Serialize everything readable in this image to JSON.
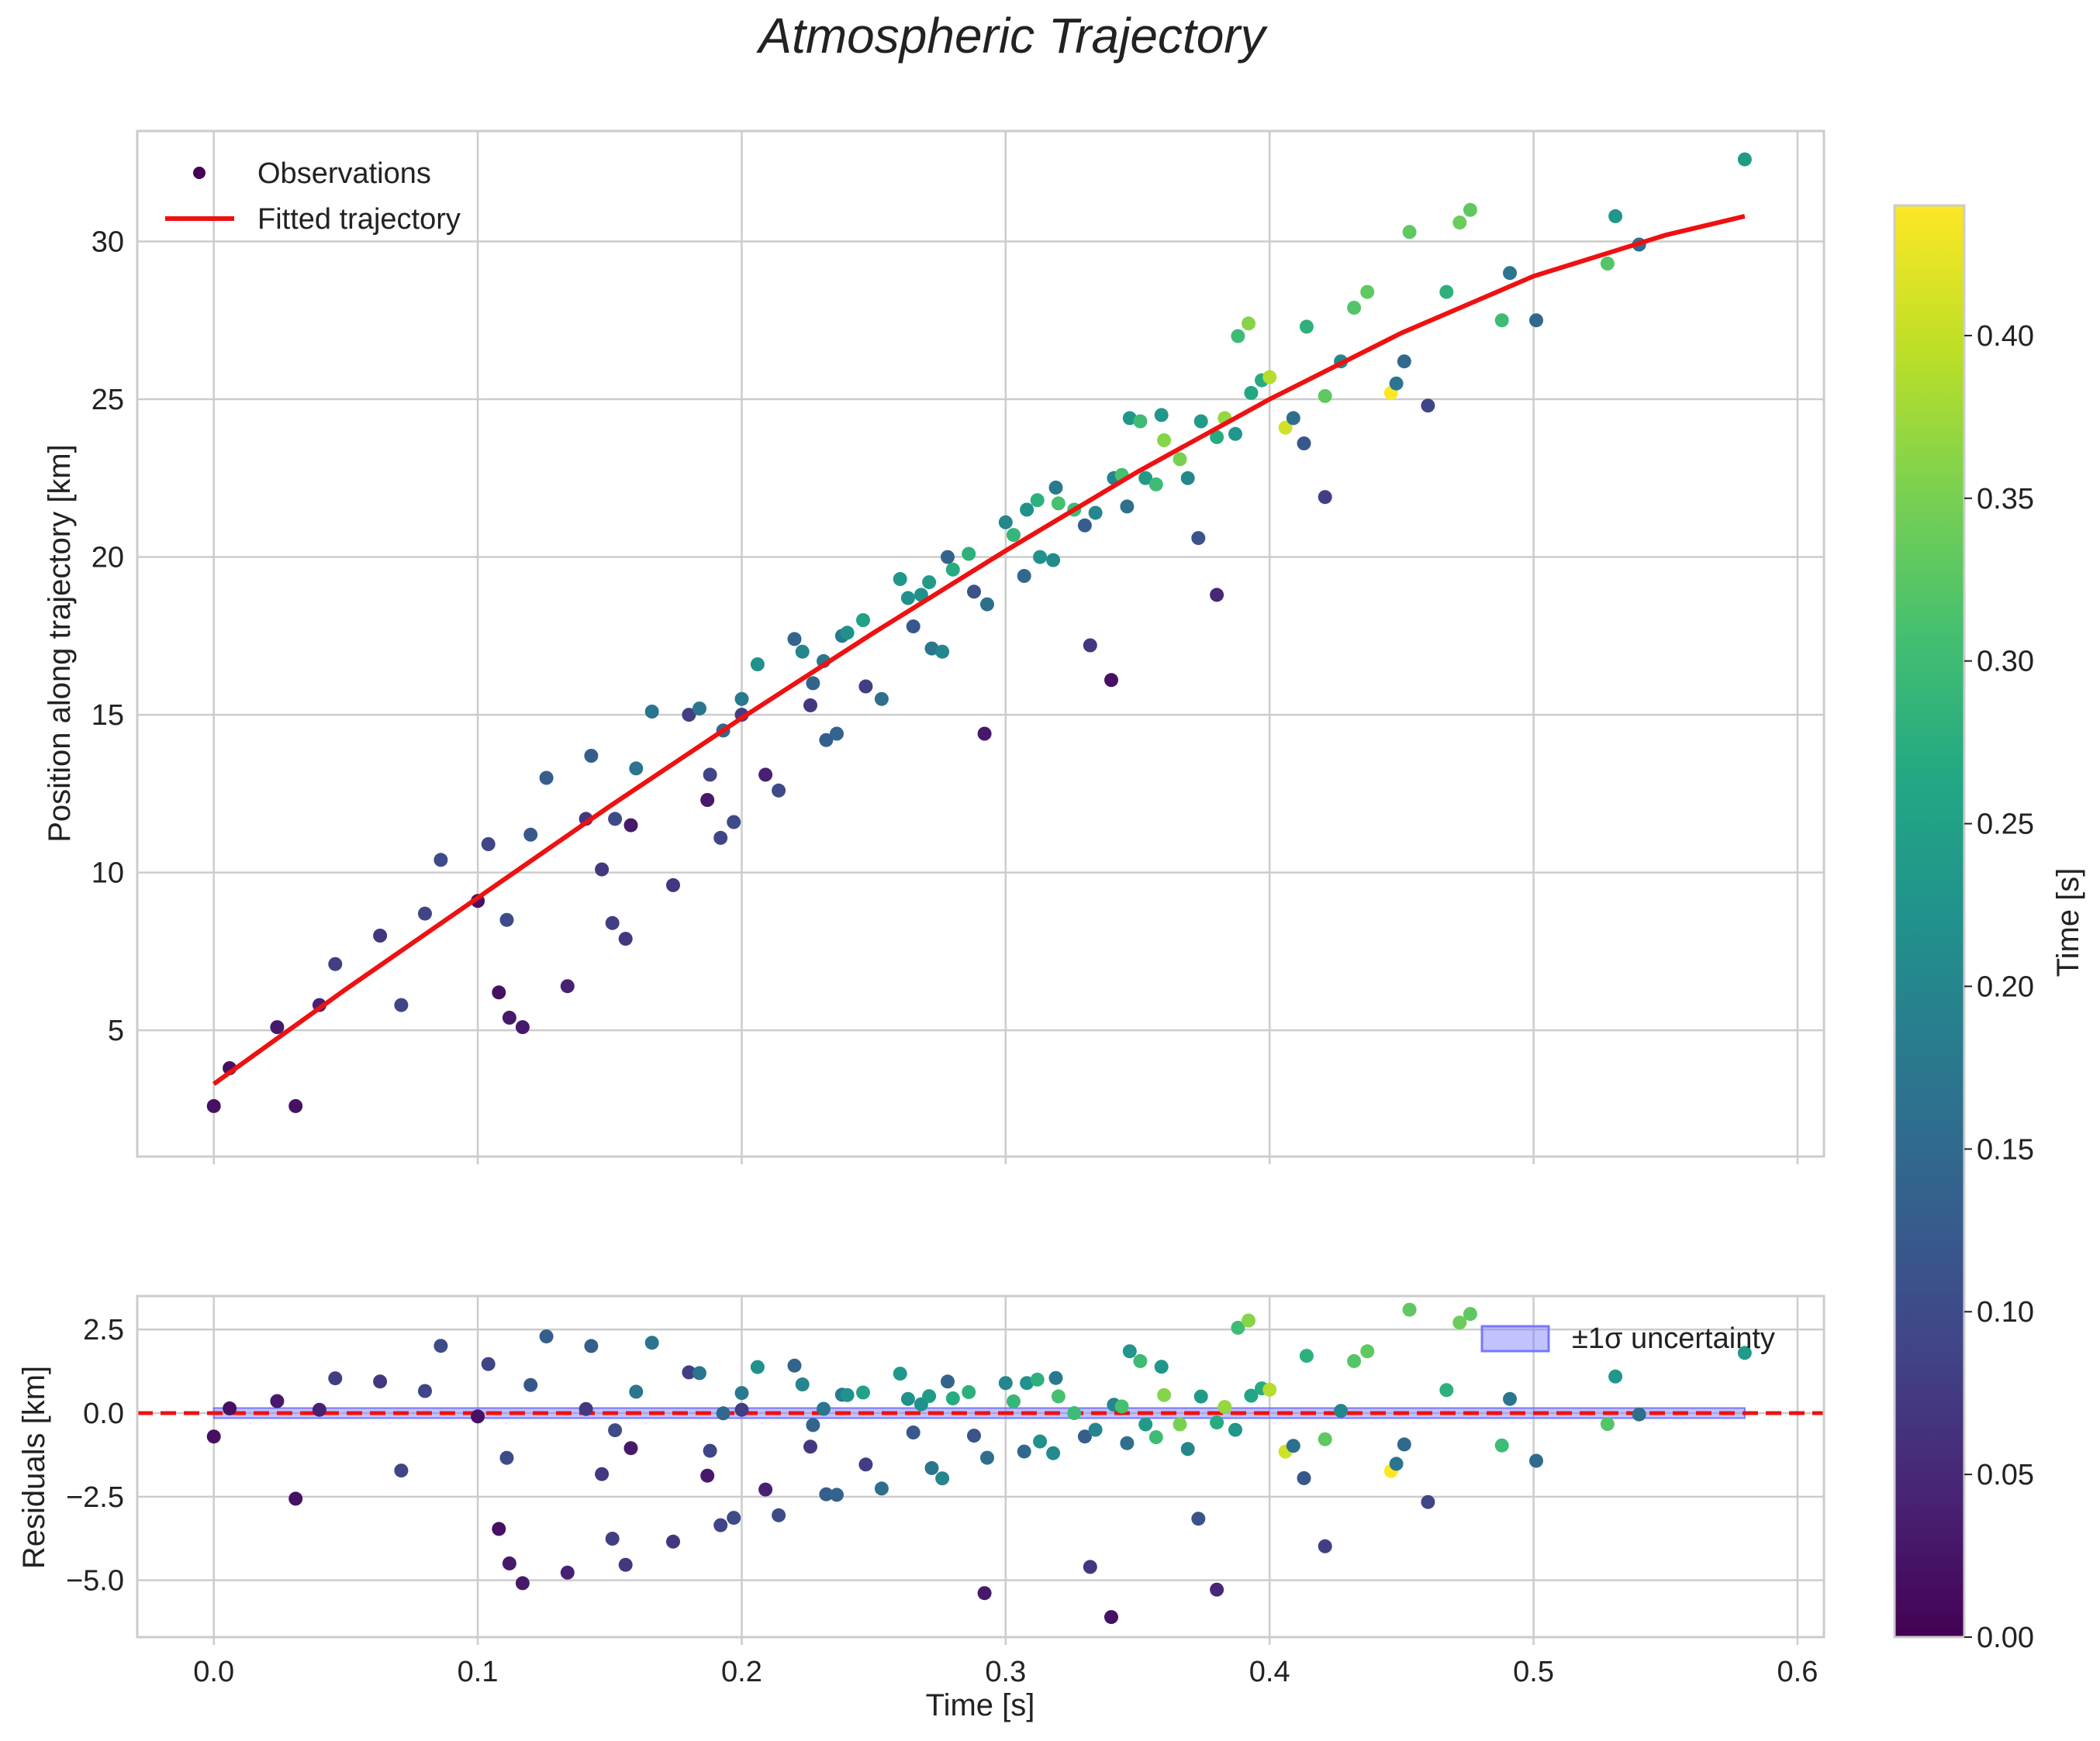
{
  "chart_data": {
    "type": "scatter",
    "title": "Atmospheric Trajectory",
    "main_panel": {
      "xlabel": "",
      "ylabel": "Position along trajectory [km]",
      "xlim": [
        -0.029,
        0.61
      ],
      "ylim": [
        1.0,
        33.5
      ],
      "yticks": [
        5,
        10,
        15,
        20,
        25,
        30
      ],
      "grid": true,
      "legend": {
        "location": "top-left",
        "entries": [
          "Observations",
          "Fitted trajectory"
        ]
      },
      "fitted_curve": {
        "name": "Fitted trajectory",
        "color": "#ee1111",
        "x": [
          0.0,
          0.05,
          0.1,
          0.15,
          0.2,
          0.25,
          0.3,
          0.35,
          0.4,
          0.45,
          0.5,
          0.55,
          0.58
        ],
        "y": [
          3.3,
          6.3,
          9.2,
          12.1,
          14.9,
          17.6,
          20.2,
          22.7,
          25.0,
          27.1,
          28.9,
          30.2,
          30.8
        ]
      }
    },
    "residual_panel": {
      "xlabel": "Time [s]",
      "ylabel": "Residuals [km]",
      "xlim": [
        -0.029,
        0.61
      ],
      "ylim": [
        -6.7,
        3.5
      ],
      "yticks": [
        2.5,
        0.0,
        -2.5,
        -5.0
      ],
      "zero_line_color": "#ee1111",
      "band": {
        "label": "±1σ uncertainty",
        "halfwidth": 0.15,
        "color": "#7777ff"
      },
      "legend": {
        "location": "top-right",
        "entries": [
          "±1σ uncertainty"
        ]
      }
    },
    "xticks": [
      0.0,
      0.1,
      0.2,
      0.3,
      0.4,
      0.5,
      0.6
    ],
    "colorbar": {
      "label": "Time [s]",
      "colormap": "viridis",
      "range": [
        0.0,
        0.44
      ],
      "ticks": [
        0.0,
        0.05,
        0.1,
        0.15,
        0.2,
        0.25,
        0.3,
        0.35,
        0.4
      ]
    },
    "series": [
      {
        "name": "Observations",
        "points": [
          [
            0.0,
            2.6,
            0.02
          ],
          [
            0.006,
            3.8,
            0.02
          ],
          [
            0.024,
            5.1,
            0.03
          ],
          [
            0.031,
            2.6,
            0.02
          ],
          [
            0.04,
            5.8,
            0.04
          ],
          [
            0.046,
            7.1,
            0.08
          ],
          [
            0.063,
            8.0,
            0.07
          ],
          [
            0.071,
            5.8,
            0.09
          ],
          [
            0.08,
            8.7,
            0.09
          ],
          [
            0.086,
            10.4,
            0.1
          ],
          [
            0.1,
            9.1,
            0.02
          ],
          [
            0.104,
            10.9,
            0.09
          ],
          [
            0.108,
            6.2,
            0.02
          ],
          [
            0.111,
            8.5,
            0.1
          ],
          [
            0.112,
            5.4,
            0.03
          ],
          [
            0.117,
            5.1,
            0.03
          ],
          [
            0.12,
            11.2,
            0.12
          ],
          [
            0.126,
            13.0,
            0.13
          ],
          [
            0.134,
            6.4,
            0.04
          ],
          [
            0.141,
            11.7,
            0.07
          ],
          [
            0.143,
            13.7,
            0.13
          ],
          [
            0.147,
            10.1,
            0.07
          ],
          [
            0.151,
            8.4,
            0.08
          ],
          [
            0.152,
            11.7,
            0.1
          ],
          [
            0.156,
            7.9,
            0.07
          ],
          [
            0.158,
            11.5,
            0.03
          ],
          [
            0.16,
            13.3,
            0.17
          ],
          [
            0.166,
            15.1,
            0.17
          ],
          [
            0.174,
            9.6,
            0.07
          ],
          [
            0.18,
            15.0,
            0.08
          ],
          [
            0.184,
            15.2,
            0.17
          ],
          [
            0.187,
            12.3,
            0.03
          ],
          [
            0.188,
            13.1,
            0.09
          ],
          [
            0.192,
            11.1,
            0.09
          ],
          [
            0.193,
            14.5,
            0.15
          ],
          [
            0.197,
            11.6,
            0.1
          ],
          [
            0.2,
            15.0,
            0.08
          ],
          [
            0.2,
            15.5,
            0.18
          ],
          [
            0.206,
            16.6,
            0.22
          ],
          [
            0.209,
            13.1,
            0.04
          ],
          [
            0.214,
            12.6,
            0.1
          ],
          [
            0.22,
            17.4,
            0.14
          ],
          [
            0.223,
            17.0,
            0.2
          ],
          [
            0.226,
            15.3,
            0.07
          ],
          [
            0.227,
            16.0,
            0.14
          ],
          [
            0.231,
            16.7,
            0.17
          ],
          [
            0.232,
            14.2,
            0.13
          ],
          [
            0.236,
            14.4,
            0.14
          ],
          [
            0.238,
            17.5,
            0.18
          ],
          [
            0.24,
            17.6,
            0.22
          ],
          [
            0.246,
            18.0,
            0.25
          ],
          [
            0.247,
            15.9,
            0.08
          ],
          [
            0.253,
            15.5,
            0.16
          ],
          [
            0.26,
            19.3,
            0.23
          ],
          [
            0.263,
            18.7,
            0.22
          ],
          [
            0.265,
            17.8,
            0.12
          ],
          [
            0.268,
            18.8,
            0.22
          ],
          [
            0.271,
            19.2,
            0.24
          ],
          [
            0.272,
            17.1,
            0.17
          ],
          [
            0.276,
            17.0,
            0.2
          ],
          [
            0.278,
            20.0,
            0.14
          ],
          [
            0.28,
            19.6,
            0.27
          ],
          [
            0.286,
            20.1,
            0.28
          ],
          [
            0.288,
            18.9,
            0.11
          ],
          [
            0.292,
            14.4,
            0.03
          ],
          [
            0.293,
            18.5,
            0.16
          ],
          [
            0.3,
            21.1,
            0.2
          ],
          [
            0.303,
            20.7,
            0.29
          ],
          [
            0.307,
            19.4,
            0.15
          ],
          [
            0.308,
            21.5,
            0.22
          ],
          [
            0.312,
            21.8,
            0.28
          ],
          [
            0.313,
            20.0,
            0.22
          ],
          [
            0.318,
            19.9,
            0.21
          ],
          [
            0.319,
            22.2,
            0.18
          ],
          [
            0.32,
            21.7,
            0.31
          ],
          [
            0.326,
            21.5,
            0.3
          ],
          [
            0.33,
            21.0,
            0.13
          ],
          [
            0.332,
            17.2,
            0.07
          ],
          [
            0.334,
            21.4,
            0.2
          ],
          [
            0.34,
            16.1,
            0.02
          ],
          [
            0.341,
            22.5,
            0.2
          ],
          [
            0.344,
            22.6,
            0.31
          ],
          [
            0.346,
            21.6,
            0.16
          ],
          [
            0.347,
            24.4,
            0.23
          ],
          [
            0.351,
            24.3,
            0.3
          ],
          [
            0.353,
            22.5,
            0.24
          ],
          [
            0.357,
            22.3,
            0.3
          ],
          [
            0.359,
            24.5,
            0.23
          ],
          [
            0.36,
            23.7,
            0.36
          ],
          [
            0.366,
            23.1,
            0.35
          ],
          [
            0.369,
            22.5,
            0.2
          ],
          [
            0.373,
            20.6,
            0.11
          ],
          [
            0.374,
            24.3,
            0.24
          ],
          [
            0.38,
            23.8,
            0.27
          ],
          [
            0.38,
            18.8,
            0.05
          ],
          [
            0.383,
            24.4,
            0.37
          ],
          [
            0.387,
            23.9,
            0.23
          ],
          [
            0.388,
            27.0,
            0.3
          ],
          [
            0.392,
            27.4,
            0.36
          ],
          [
            0.393,
            25.2,
            0.26
          ],
          [
            0.397,
            25.6,
            0.27
          ],
          [
            0.4,
            25.7,
            0.39
          ],
          [
            0.406,
            24.1,
            0.41
          ],
          [
            0.409,
            24.4,
            0.16
          ],
          [
            0.413,
            23.6,
            0.12
          ],
          [
            0.414,
            27.3,
            0.28
          ],
          [
            0.421,
            25.1,
            0.33
          ],
          [
            0.421,
            21.9,
            0.08
          ],
          [
            0.427,
            26.2,
            0.2
          ],
          [
            0.432,
            27.9,
            0.32
          ],
          [
            0.437,
            28.4,
            0.33
          ],
          [
            0.446,
            25.2,
            0.44
          ],
          [
            0.448,
            25.5,
            0.17
          ],
          [
            0.451,
            26.2,
            0.15
          ],
          [
            0.453,
            30.3,
            0.33
          ],
          [
            0.46,
            24.8,
            0.09
          ],
          [
            0.467,
            28.4,
            0.28
          ],
          [
            0.472,
            30.6,
            0.34
          ],
          [
            0.476,
            31.0,
            0.33
          ],
          [
            0.488,
            27.5,
            0.3
          ],
          [
            0.491,
            29.0,
            0.17
          ],
          [
            0.501,
            27.5,
            0.15
          ],
          [
            0.528,
            29.3,
            0.32
          ],
          [
            0.531,
            30.8,
            0.23
          ],
          [
            0.54,
            29.9,
            0.16
          ],
          [
            0.58,
            32.6,
            0.24
          ]
        ]
      }
    ]
  }
}
